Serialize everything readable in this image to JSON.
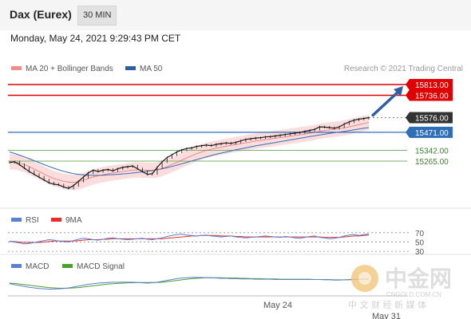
{
  "header": {
    "title": "Dax (Eurex)",
    "interval": "30 MIN",
    "datetime": "Monday, May 24, 2021 9:29:43 PM CET"
  },
  "legend": {
    "ma20": {
      "label": "MA 20 + Bollinger Bands",
      "color": "#f08c8c"
    },
    "ma50": {
      "label": "MA 50",
      "color": "#2f5fa3"
    },
    "credit": "Research © 2021 Trading Central"
  },
  "colors": {
    "price_line": "#1a1a1a",
    "resistance": "#e00000",
    "current": "#333333",
    "pivot": "#2f6fb7",
    "support": "#79b36d",
    "arrow": "#2f5fa3",
    "band_fill": "#fbdddd",
    "rsi": "#5b7fd1",
    "rsi_ma": "#e03030",
    "macd": "#5b7fd1",
    "macd_signal": "#4aa02c"
  },
  "chart_data": [
    {
      "type": "line",
      "title": "Dax (Eurex)",
      "ylim": [
        15050,
        15880
      ],
      "x_tick_labels": [
        "May 24",
        "May 31"
      ],
      "levels": [
        {
          "value": 15813.0,
          "label": "15813.00",
          "kind": "resistance"
        },
        {
          "value": 15736.0,
          "label": "15736.00",
          "kind": "resistance"
        },
        {
          "value": 15576.0,
          "label": "15576.00",
          "kind": "current"
        },
        {
          "value": 15471.0,
          "label": "15471.00",
          "kind": "pivot"
        },
        {
          "value": 15342.0,
          "label": "15342.00",
          "kind": "support"
        },
        {
          "value": 15265.0,
          "label": "15265.00",
          "kind": "support"
        }
      ],
      "series": [
        {
          "name": "Price",
          "values": [
            15255,
            15260,
            15240,
            15215,
            15190,
            15170,
            15150,
            15130,
            15110,
            15100,
            15095,
            15080,
            15070,
            15090,
            15120,
            15150,
            15180,
            15200,
            15190,
            15200,
            15205,
            15195,
            15210,
            15220,
            15225,
            15230,
            15210,
            15190,
            15170,
            15175,
            15220,
            15260,
            15290,
            15310,
            15330,
            15345,
            15355,
            15360,
            15370,
            15375,
            15380,
            15375,
            15385,
            15390,
            15395,
            15392,
            15400,
            15410,
            15420,
            15425,
            15430,
            15432,
            15438,
            15440,
            15445,
            15450,
            15455,
            15460,
            15465,
            15470,
            15478,
            15485,
            15492,
            15510,
            15508,
            15505,
            15500,
            15510,
            15530,
            15545,
            15558,
            15565,
            15570,
            15576
          ]
        },
        {
          "name": "MA 20",
          "values": [
            15262,
            15258,
            15252,
            15240,
            15225,
            15208,
            15190,
            15172,
            15155,
            15140,
            15130,
            15120,
            15115,
            15112,
            15118,
            15128,
            15140,
            15152,
            15160,
            15168,
            15175,
            15180,
            15185,
            15190,
            15196,
            15200,
            15202,
            15202,
            15200,
            15198,
            15202,
            15212,
            15225,
            15240,
            15256,
            15272,
            15288,
            15303,
            15318,
            15330,
            15342,
            15350,
            15358,
            15365,
            15372,
            15378,
            15384,
            15390,
            15396,
            15402,
            15408,
            15413,
            15418,
            15423,
            15428,
            15433,
            15438,
            15443,
            15448,
            15453,
            15458,
            15464,
            15470,
            15478,
            15484,
            15488,
            15492,
            15497,
            15503,
            15510,
            15518,
            15526,
            15534,
            15542
          ]
        },
        {
          "name": "MA 50",
          "values": [
            15330,
            15320,
            15308,
            15295,
            15282,
            15268,
            15254,
            15240,
            15227,
            15214,
            15202,
            15192,
            15183,
            15175,
            15170,
            15166,
            15164,
            15163,
            15163,
            15164,
            15166,
            15168,
            15170,
            15173,
            15176,
            15180,
            15184,
            15188,
            15192,
            15197,
            15203,
            15210,
            15218,
            15227,
            15236,
            15246,
            15256,
            15266,
            15276,
            15286,
            15296,
            15305,
            15314,
            15322,
            15330,
            15338,
            15346,
            15353,
            15360,
            15367,
            15374,
            15380,
            15386,
            15392,
            15398,
            15404,
            15410,
            15416,
            15422,
            15428,
            15434,
            15440,
            15446,
            15452,
            15458,
            15463,
            15468,
            15473,
            15478,
            15483,
            15489,
            15495,
            15500,
            15505
          ]
        }
      ]
    },
    {
      "type": "line",
      "title": "RSI",
      "ylim": [
        25,
        80
      ],
      "y_tick_labels": [
        "70",
        "50",
        "30"
      ],
      "y_ticks": [
        70,
        50,
        30
      ],
      "series": [
        {
          "name": "RSI",
          "values": [
            52,
            50,
            48,
            46,
            47,
            49,
            51,
            53,
            55,
            54,
            52,
            51,
            50,
            53,
            56,
            58,
            57,
            55,
            54,
            56,
            58,
            59,
            57,
            56,
            55,
            56,
            57,
            58,
            56,
            55,
            57,
            59,
            62,
            64,
            66,
            67,
            65,
            64,
            63,
            64,
            65,
            63,
            62,
            61,
            62,
            63,
            61,
            60,
            59,
            60,
            61,
            62,
            63,
            62,
            61,
            60,
            62,
            61,
            59,
            58,
            60,
            62,
            63,
            60,
            59,
            57,
            58,
            60,
            63,
            65,
            66,
            64,
            66,
            67
          ]
        },
        {
          "name": "9MA",
          "values": [
            51,
            51,
            50,
            49,
            49,
            49,
            49,
            50,
            51,
            52,
            52,
            52,
            52,
            52,
            53,
            54,
            55,
            55,
            55,
            56,
            56,
            57,
            57,
            57,
            57,
            57,
            57,
            57,
            57,
            57,
            57,
            57,
            58,
            59,
            60,
            61,
            62,
            63,
            63,
            64,
            64,
            64,
            64,
            63,
            63,
            63,
            62,
            62,
            61,
            61,
            61,
            61,
            61,
            61,
            61,
            61,
            61,
            61,
            61,
            61,
            61,
            61,
            61,
            61,
            60,
            60,
            60,
            60,
            61,
            62,
            63,
            63,
            64,
            65
          ]
        }
      ]
    },
    {
      "type": "line",
      "title": "MACD",
      "ylim": [
        -40,
        40
      ],
      "series": [
        {
          "name": "MACD",
          "values": [
            -2,
            -5,
            -8,
            -11,
            -14,
            -16,
            -18,
            -19,
            -20,
            -20,
            -19,
            -18,
            -16,
            -13,
            -10,
            -7,
            -4,
            -2,
            0,
            1,
            2,
            3,
            3,
            3,
            3,
            3,
            2,
            1,
            0,
            1,
            3,
            6,
            9,
            12,
            15,
            17,
            18,
            19,
            19,
            19,
            18,
            18,
            17,
            16,
            16,
            15,
            15,
            14,
            14,
            14,
            13,
            13,
            13,
            13,
            12,
            12,
            12,
            12,
            12,
            12,
            12,
            12,
            12,
            12,
            11,
            11,
            10,
            10,
            11,
            12,
            13,
            14,
            14,
            15
          ]
        },
        {
          "name": "MACD Signal",
          "values": [
            0,
            -1,
            -3,
            -5,
            -7,
            -9,
            -11,
            -13,
            -15,
            -16,
            -17,
            -17,
            -17,
            -16,
            -15,
            -13,
            -11,
            -9,
            -7,
            -5,
            -3,
            -2,
            -1,
            0,
            1,
            1,
            2,
            2,
            2,
            2,
            2,
            3,
            5,
            7,
            9,
            11,
            13,
            15,
            16,
            17,
            18,
            18,
            18,
            18,
            17,
            17,
            17,
            16,
            16,
            15,
            15,
            15,
            14,
            14,
            14,
            13,
            13,
            13,
            13,
            13,
            13,
            13,
            12,
            12,
            12,
            12,
            11,
            11,
            11,
            11,
            12,
            12,
            13,
            13
          ]
        }
      ]
    }
  ],
  "watermark": {
    "cn_name": "中金网",
    "site": "CNGOLD.COM.CN",
    "slogan": "中 文 财 经 新 媒 体"
  }
}
